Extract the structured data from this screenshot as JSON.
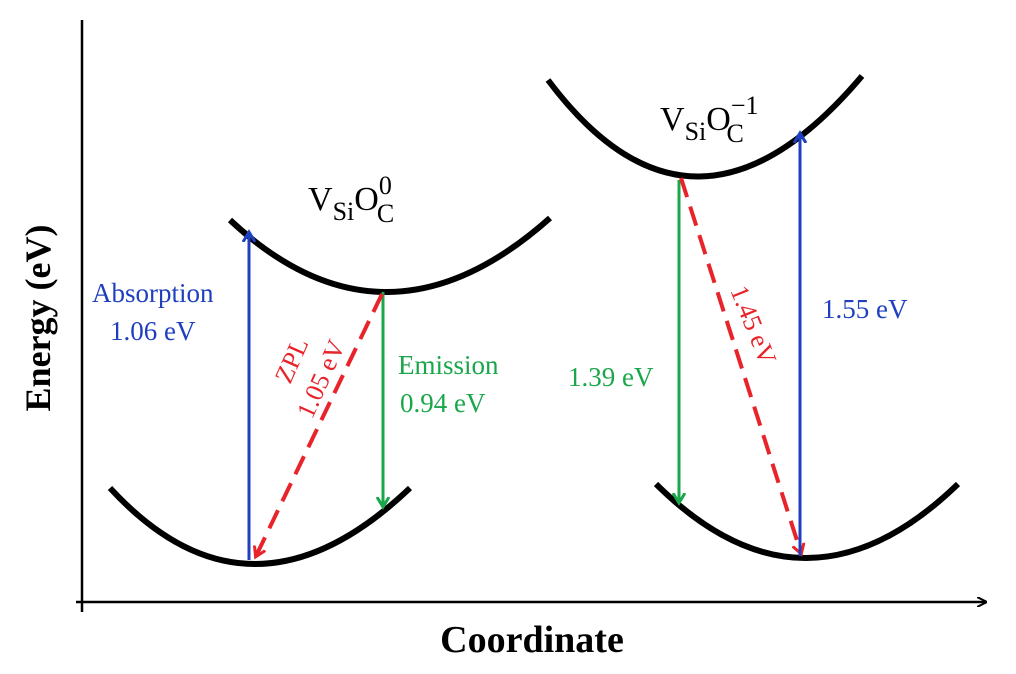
{
  "axes": {
    "x_label": "Coordinate",
    "y_label": "Energy (eV)"
  },
  "left_defect": {
    "label": {
      "base": "V",
      "sub1": "Si",
      "mid": "O",
      "sub2": "C",
      "sup": "0"
    },
    "absorption": {
      "name": "Absorption",
      "value": "1.06 eV"
    },
    "zpl": {
      "name": "ZPL",
      "value": "1.05 eV"
    },
    "emission": {
      "name": "Emission",
      "value": "0.94 eV"
    }
  },
  "right_defect": {
    "label": {
      "base": "V",
      "sub1": "Si",
      "mid": "O",
      "sub2": "C",
      "sup": "−1"
    },
    "emission": {
      "value": "1.39 eV"
    },
    "zpl": {
      "value": "1.45 eV"
    },
    "absorption": {
      "value": "1.55 eV"
    }
  },
  "colors": {
    "axis": "#000000",
    "curve": "#000000",
    "absorption": "#1f3fbf",
    "emission": "#1aa64a",
    "zpl": "#e8232a",
    "text": "#000000"
  }
}
